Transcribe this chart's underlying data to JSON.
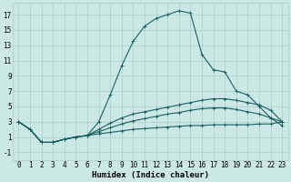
{
  "xlabel": "Humidex (Indice chaleur)",
  "x_values": [
    0,
    1,
    2,
    3,
    4,
    5,
    6,
    7,
    8,
    9,
    10,
    11,
    12,
    13,
    14,
    15,
    16,
    17,
    18,
    19,
    20,
    21,
    22,
    23
  ],
  "line1_y": [
    3.0,
    2.0,
    0.3,
    0.3,
    0.7,
    1.0,
    1.2,
    3.0,
    6.5,
    10.3,
    13.5,
    15.5,
    16.5,
    17.0,
    17.5,
    17.2,
    11.8,
    9.8,
    9.5,
    7.0,
    6.5,
    5.0,
    3.5,
    2.5
  ],
  "line2_y": [
    3.0,
    2.0,
    0.3,
    0.3,
    0.7,
    1.0,
    1.2,
    2.0,
    2.8,
    3.5,
    4.0,
    4.3,
    4.6,
    4.9,
    5.2,
    5.5,
    5.8,
    6.0,
    6.0,
    5.8,
    5.5,
    5.2,
    4.5,
    3.0
  ],
  "line3_y": [
    3.0,
    2.0,
    0.3,
    0.3,
    0.7,
    1.0,
    1.2,
    1.7,
    2.2,
    2.7,
    3.1,
    3.4,
    3.7,
    4.0,
    4.2,
    4.5,
    4.7,
    4.8,
    4.8,
    4.6,
    4.3,
    4.0,
    3.5,
    3.0
  ],
  "line4_y": [
    3.0,
    2.0,
    0.3,
    0.3,
    0.7,
    1.0,
    1.2,
    1.4,
    1.6,
    1.8,
    2.0,
    2.1,
    2.2,
    2.3,
    2.4,
    2.5,
    2.5,
    2.6,
    2.6,
    2.6,
    2.6,
    2.7,
    2.7,
    3.0
  ],
  "bg_color": "#cce8e5",
  "line_color": "#1a6060",
  "grid_color": "#aacfcc",
  "ylim": [
    -2.0,
    18.5
  ],
  "yticks": [
    -1,
    1,
    3,
    5,
    7,
    9,
    11,
    13,
    15,
    17
  ],
  "xlim": [
    -0.5,
    23.5
  ],
  "tick_fontsize": 5.5,
  "xlabel_fontsize": 6.5
}
